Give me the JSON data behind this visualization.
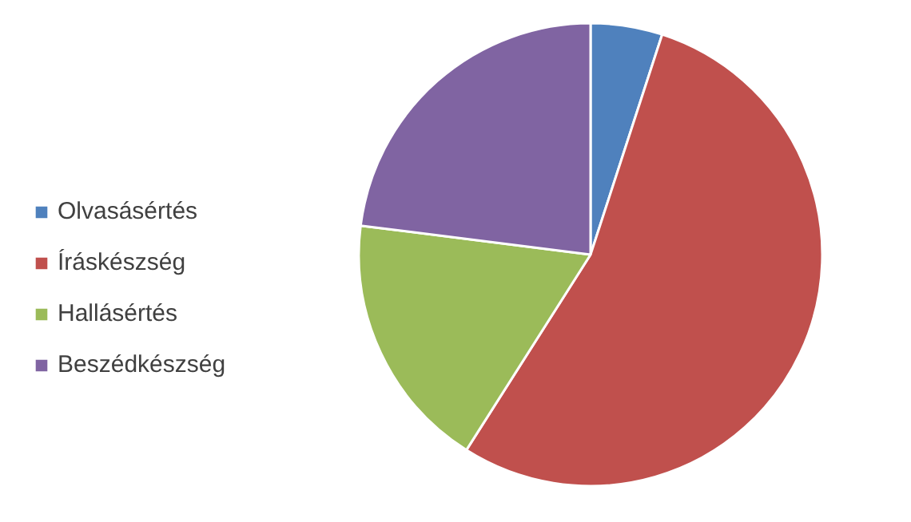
{
  "chart_data": {
    "type": "pie",
    "categories": [
      "Olvasásértés",
      "Íráskészség",
      "Hallásértés",
      "Beszédkészség"
    ],
    "values": [
      5,
      54,
      18,
      23
    ],
    "colors": [
      "#4f81bd",
      "#c0504d",
      "#9bbb59",
      "#8064a2"
    ],
    "legend": "left"
  }
}
